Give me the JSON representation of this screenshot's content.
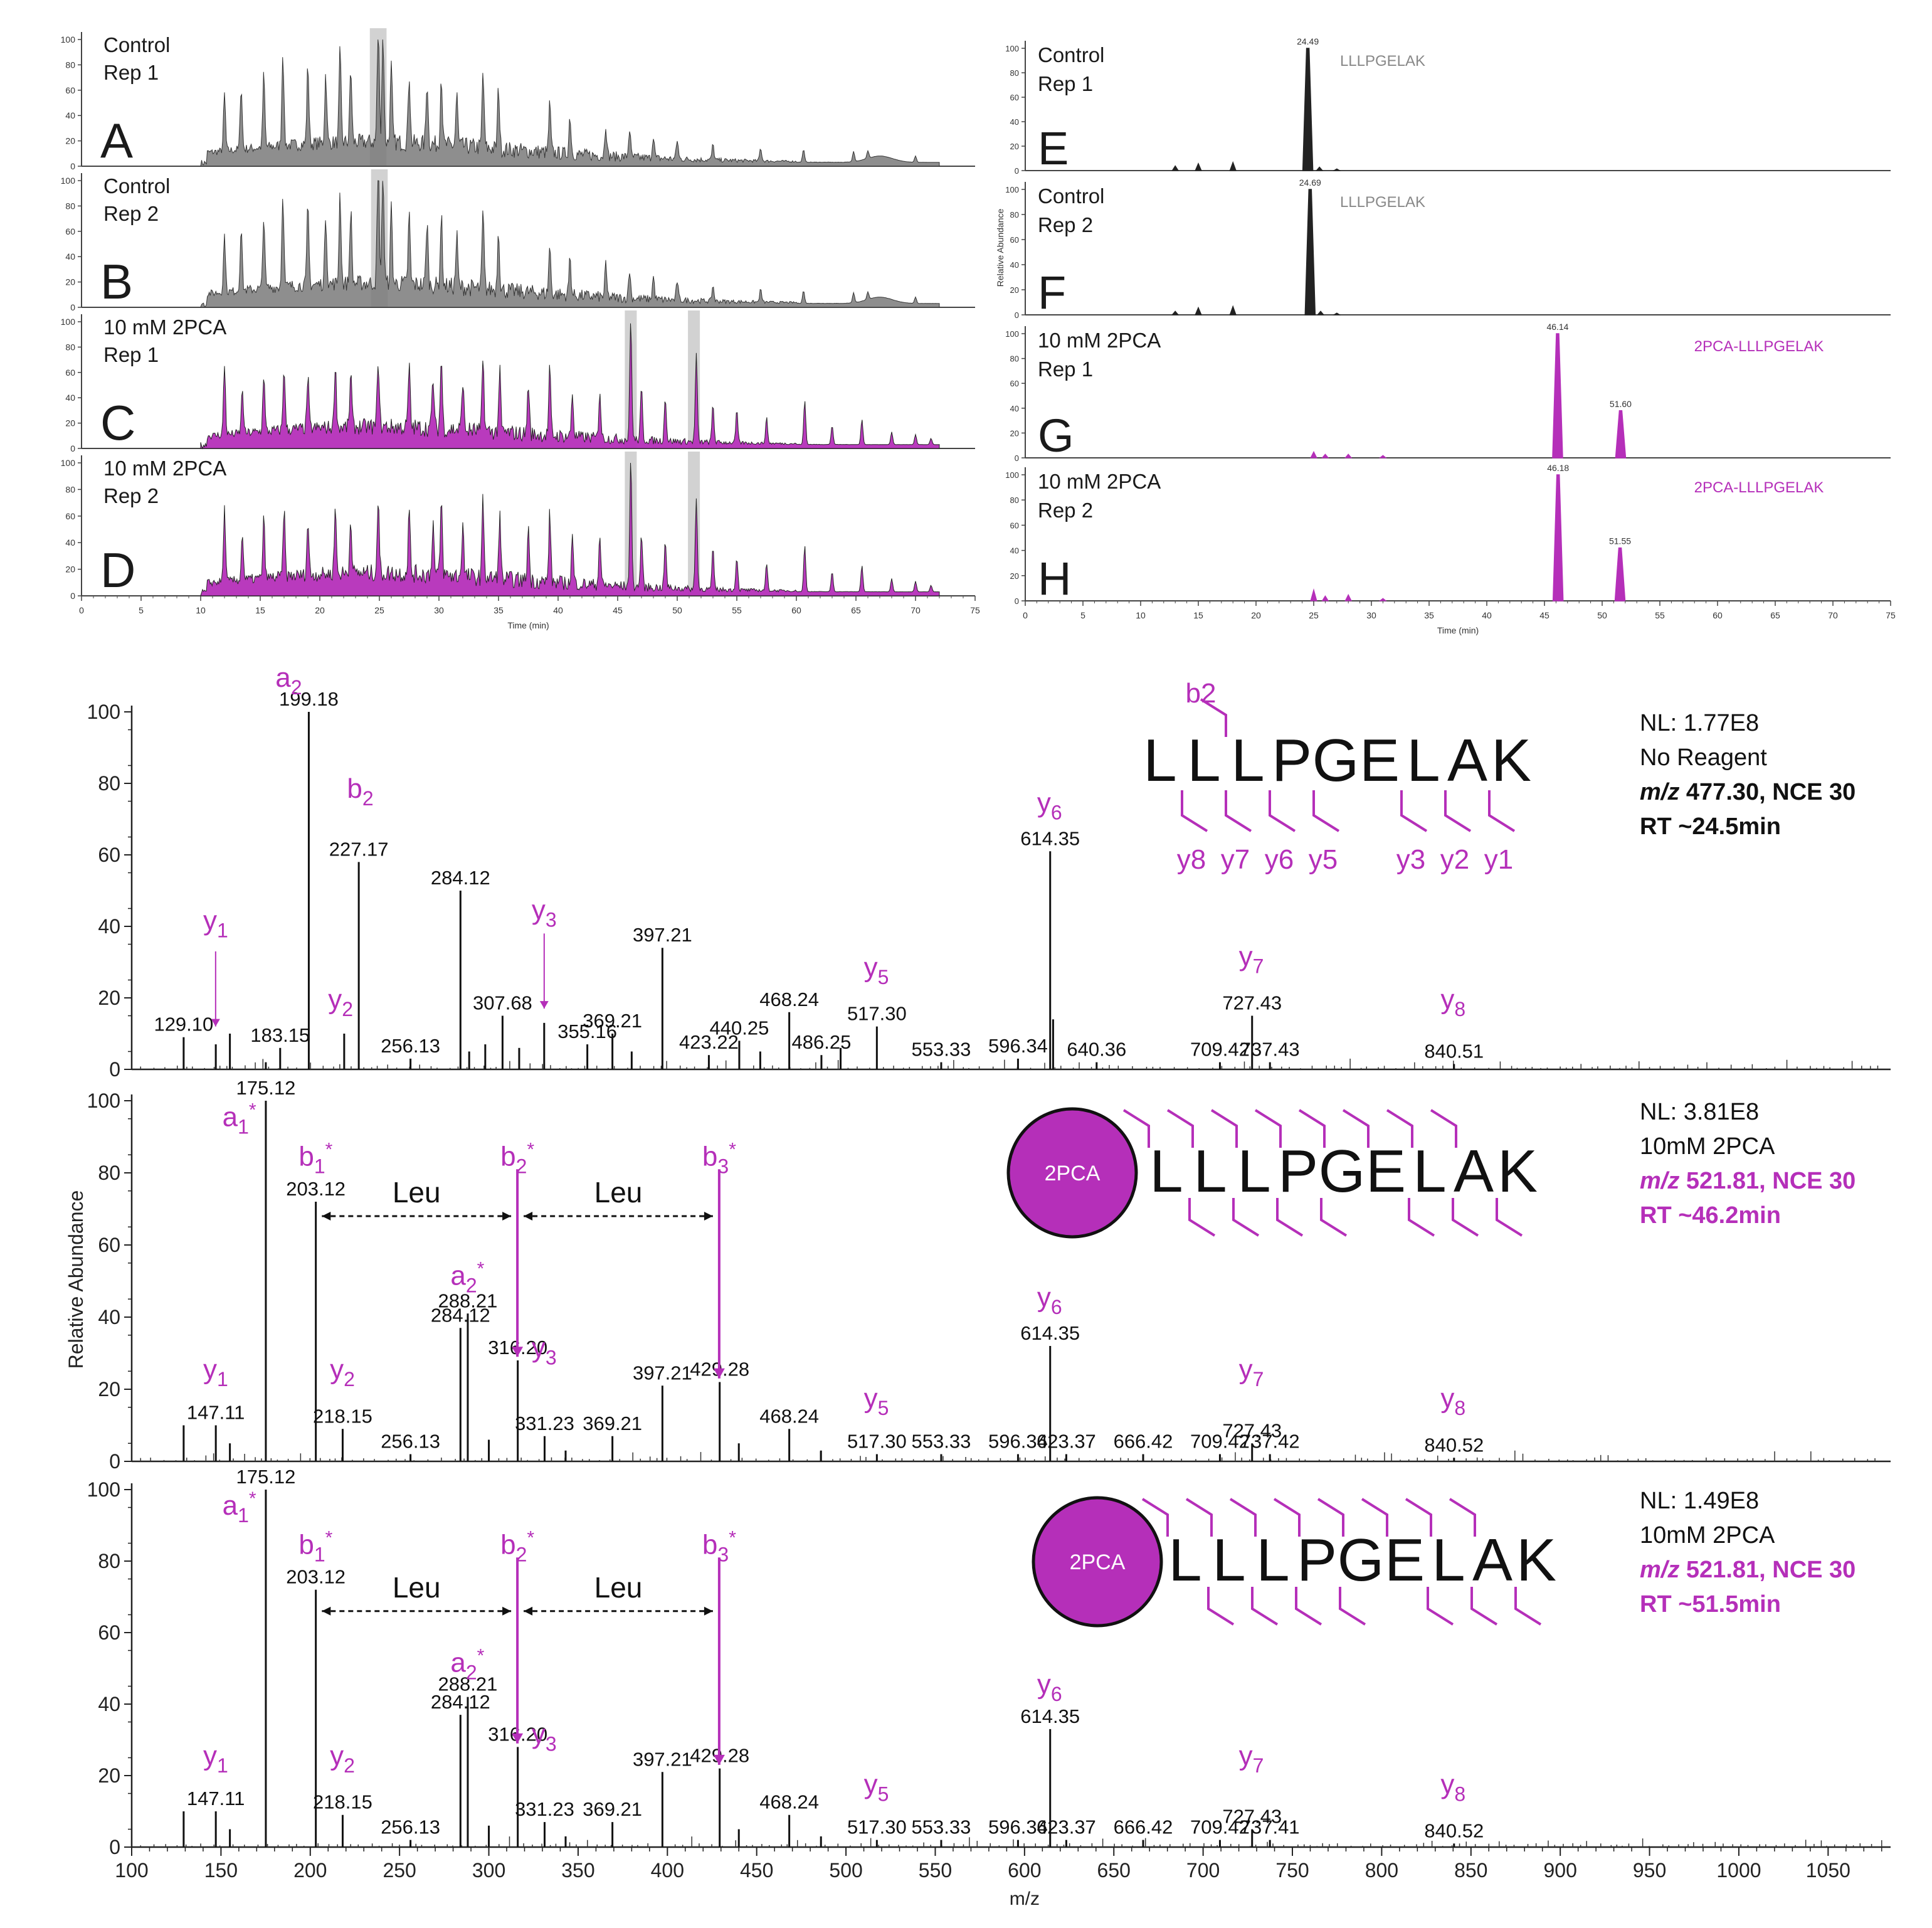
{
  "colors": {
    "magenta": "#b52fb9",
    "black": "#1a1a1a",
    "gray": "#808080",
    "highlight": "#d2d2d2",
    "green": "#7dd27d"
  },
  "chromatograms": [
    {
      "letter": "A",
      "label1": "Control",
      "label2": "Rep 1",
      "mode": "control",
      "hl": [
        [
          24.2,
          25.6
        ]
      ]
    },
    {
      "letter": "B",
      "label1": "Control",
      "label2": "Rep 2",
      "mode": "control",
      "hl": [
        [
          24.3,
          25.7
        ]
      ]
    },
    {
      "letter": "C",
      "label1": "10 mM 2PCA",
      "label2": "Rep 1",
      "mode": "2pca",
      "hl": [
        [
          45.6,
          46.6
        ],
        [
          50.9,
          51.9
        ]
      ]
    },
    {
      "letter": "D",
      "label1": "10 mM 2PCA",
      "label2": "Rep 2",
      "mode": "2pca",
      "hl": [
        [
          45.6,
          46.6
        ],
        [
          50.9,
          51.9
        ]
      ]
    }
  ],
  "xics": [
    {
      "letter": "E",
      "label1": "Control",
      "label2": "Rep 1",
      "tag": "LLLPGELAK",
      "tag_color": "gray",
      "peaks": [
        {
          "rt": 24.49,
          "h": 100,
          "label": "24.49"
        }
      ],
      "small": [
        [
          13,
          4
        ],
        [
          15,
          6
        ],
        [
          18,
          7
        ],
        [
          25.5,
          3
        ],
        [
          27,
          1.5
        ]
      ]
    },
    {
      "letter": "F",
      "label1": "Control",
      "label2": "Rep 2",
      "tag": "LLLPGELAK",
      "tag_color": "gray",
      "peaks": [
        {
          "rt": 24.69,
          "h": 100,
          "label": "24.69"
        }
      ],
      "small": [
        [
          13,
          3
        ],
        [
          15,
          6
        ],
        [
          18,
          7
        ],
        [
          25.6,
          3
        ],
        [
          27,
          1.5
        ]
      ]
    },
    {
      "letter": "G",
      "label1": "10 mM 2PCA",
      "label2": "Rep 1",
      "tag": "2PCA-LLLPGELAK",
      "tag_color": "magenta",
      "peaks": [
        {
          "rt": 46.14,
          "h": 100,
          "label": "46.14"
        },
        {
          "rt": 51.6,
          "h": 38,
          "label": "51.60"
        }
      ],
      "small": [
        [
          25,
          5
        ],
        [
          26,
          3
        ],
        [
          28,
          3
        ],
        [
          31,
          2
        ]
      ]
    },
    {
      "letter": "H",
      "label1": "10 mM 2PCA",
      "label2": "Rep 2",
      "tag": "2PCA-LLLPGELAK",
      "tag_color": "magenta",
      "peaks": [
        {
          "rt": 46.18,
          "h": 100,
          "label": "46.18"
        },
        {
          "rt": 51.55,
          "h": 42,
          "label": "51.55"
        }
      ],
      "small": [
        [
          25,
          9
        ],
        [
          26,
          4
        ],
        [
          28,
          5
        ],
        [
          31,
          2
        ]
      ]
    }
  ],
  "xics_ylabel": "Relative Abundance",
  "top_xlabel": "Time (min)",
  "top_yticks": [
    "0",
    "20",
    "40",
    "60",
    "80",
    "100"
  ],
  "top_xticks": [
    "0",
    "5",
    "10",
    "15",
    "20",
    "25",
    "30",
    "35",
    "40",
    "45",
    "50",
    "55",
    "60",
    "65",
    "70",
    "75"
  ],
  "chart_data": [
    {
      "type": "line",
      "title": "",
      "xlabel": "Time (min)",
      "ylabel": "",
      "xlim": [
        0,
        75
      ],
      "ylim": [
        0,
        100
      ],
      "panels": [
        "A",
        "B",
        "C",
        "D"
      ],
      "series": [
        {
          "name": "",
          "x": [
            12,
            15.3,
            17,
            19,
            21,
            22.6,
            24.9,
            27.5,
            30.2,
            33.7,
            39.3,
            46.1,
            51.6,
            60.7,
            65.5,
            70
          ],
          "values": [
            55,
            55,
            70,
            65,
            90,
            80,
            100,
            60,
            55,
            60,
            50,
            95,
            70,
            35,
            20,
            8
          ]
        }
      ]
    },
    {
      "type": "line",
      "xlabel": "Time (min)",
      "ylabel": "Relative Abundance",
      "xlim": [
        0,
        75
      ],
      "ylim": [
        0,
        100
      ],
      "panels": [
        "E",
        "F",
        "G",
        "H"
      ],
      "series": [
        {
          "name": "LLLPGELAK",
          "x": [
            24.49,
            24.69
          ],
          "values": [
            100,
            100
          ]
        },
        {
          "name": "2PCA-LLLPGELAK",
          "x": [
            46.14,
            51.6,
            46.18,
            51.55
          ],
          "values": [
            100,
            38,
            100,
            42
          ]
        }
      ]
    },
    {
      "type": "bar",
      "xlabel": "m/z",
      "ylabel": "Relative Abundance",
      "xlim": [
        100,
        1085
      ],
      "ylim": [
        0,
        100
      ],
      "panels": [
        "NL: 1.77E8",
        "NL: 3.81E8",
        "NL: 1.49E8"
      ]
    }
  ],
  "spectra": [
    {
      "nl": "NL: 1.77E8",
      "reagent": "No Reagent",
      "mz_prefix": "m/z",
      "mz_rest": " 477.30, NCE 30",
      "rt": "RT ~24.5min",
      "info_color": "black",
      "peaks": [
        [
          129.1,
          9,
          "129.10"
        ],
        [
          147.1,
          7,
          ""
        ],
        [
          155,
          10,
          ""
        ],
        [
          175.1,
          2,
          ""
        ],
        [
          183.15,
          6,
          "183.15"
        ],
        [
          199.18,
          100,
          "199.18"
        ],
        [
          219,
          10,
          ""
        ],
        [
          227.17,
          58,
          "227.17"
        ],
        [
          256.13,
          3,
          "256.13"
        ],
        [
          284.12,
          50,
          "284.12"
        ],
        [
          289,
          5,
          ""
        ],
        [
          298,
          7,
          ""
        ],
        [
          307.68,
          15,
          "307.68"
        ],
        [
          317,
          6,
          ""
        ],
        [
          331,
          13,
          ""
        ],
        [
          355.16,
          7,
          "355.16"
        ],
        [
          369.21,
          10,
          "369.21"
        ],
        [
          380,
          5,
          ""
        ],
        [
          397.21,
          34,
          "397.21"
        ],
        [
          423.22,
          4,
          "423.22"
        ],
        [
          440.25,
          8,
          "440.25"
        ],
        [
          452,
          5,
          ""
        ],
        [
          468.24,
          16,
          "468.24"
        ],
        [
          486.25,
          4,
          "486.25"
        ],
        [
          497,
          6,
          ""
        ],
        [
          517.3,
          12,
          "517.30"
        ],
        [
          553.33,
          2,
          "553.33"
        ],
        [
          596.34,
          3,
          "596.34"
        ],
        [
          614.35,
          61,
          "614.35"
        ],
        [
          616,
          14,
          ""
        ],
        [
          640.36,
          2,
          "640.36"
        ],
        [
          709.42,
          2,
          "709.42"
        ],
        [
          727.43,
          15,
          "727.43"
        ],
        [
          737.43,
          2,
          "737.43"
        ],
        [
          840.51,
          1.5,
          "840.51"
        ]
      ],
      "ions": [
        {
          "t": "a",
          "s": "2",
          "sup": "",
          "mz": 199.18,
          "y": 107,
          "dx": -32
        },
        {
          "t": "b",
          "s": "2",
          "sup": "",
          "mz": 228,
          "y": 76,
          "dx": 0
        },
        {
          "t": "y",
          "s": "1",
          "sup": "",
          "mz": 147,
          "y": 39,
          "dx": 0
        },
        {
          "t": "y",
          "s": "2",
          "sup": "",
          "mz": 217,
          "y": 17,
          "dx": 0
        },
        {
          "t": "y",
          "s": "3",
          "sup": "",
          "mz": 331,
          "y": 42,
          "dx": 0
        },
        {
          "t": "y",
          "s": "5",
          "sup": "",
          "mz": 517,
          "y": 26,
          "dx": 0
        },
        {
          "t": "y",
          "s": "6",
          "sup": "",
          "mz": 614,
          "y": 72,
          "dx": 0
        },
        {
          "t": "y",
          "s": "7",
          "sup": "",
          "mz": 727,
          "y": 29,
          "dx": 0
        },
        {
          "t": "y",
          "s": "8",
          "sup": "",
          "mz": 840,
          "y": 17,
          "dx": 0
        }
      ],
      "seq_mode": "plain",
      "seq": [
        "L",
        "L",
        "L",
        "P",
        "G",
        "E",
        "L",
        "A",
        "K"
      ],
      "top_frag": "b2",
      "bottom_frags": [
        "y8",
        "y7",
        "y6",
        "y5",
        "y3",
        "y2",
        "y1"
      ]
    },
    {
      "nl": "NL: 3.81E8",
      "reagent": "10mM 2PCA",
      "mz_prefix": "m/z",
      "mz_rest": " 521.81, NCE 30",
      "rt": "RT ~46.2min",
      "info_color": "magenta",
      "peaks": [
        [
          129.1,
          10,
          ""
        ],
        [
          147.11,
          10,
          "147.11"
        ],
        [
          155,
          5,
          ""
        ],
        [
          175.12,
          100,
          "175.12"
        ],
        [
          203.12,
          72,
          "203.12"
        ],
        [
          218.15,
          9,
          "218.15"
        ],
        [
          256.13,
          2,
          "256.13"
        ],
        [
          284.12,
          37,
          "284.12"
        ],
        [
          288.21,
          41,
          "288.21"
        ],
        [
          300,
          6,
          ""
        ],
        [
          316.2,
          28,
          "316.20"
        ],
        [
          331.23,
          7,
          "331.23"
        ],
        [
          343,
          3,
          ""
        ],
        [
          369.21,
          7,
          "369.21"
        ],
        [
          397.21,
          21,
          "397.21"
        ],
        [
          429.28,
          22,
          "429.28"
        ],
        [
          440,
          5,
          ""
        ],
        [
          468.24,
          9,
          "468.24"
        ],
        [
          486,
          3,
          ""
        ],
        [
          517.3,
          2,
          "517.30"
        ],
        [
          553.33,
          2,
          "553.33"
        ],
        [
          596.34,
          2,
          "596.34"
        ],
        [
          614.35,
          32,
          "614.35"
        ],
        [
          623.37,
          2,
          "623.37"
        ],
        [
          666.42,
          2,
          "666.42"
        ],
        [
          709.42,
          2,
          "709.42"
        ],
        [
          727.43,
          5,
          "727.43"
        ],
        [
          737.42,
          2,
          "737.42"
        ],
        [
          840.52,
          1,
          "840.52"
        ]
      ],
      "ions": [
        {
          "t": "a",
          "s": "1",
          "sup": "*",
          "mz": 175,
          "y": 93,
          "dx": -42
        },
        {
          "t": "b",
          "s": "1",
          "sup": "*",
          "mz": 203,
          "y": 82,
          "dx": 0
        },
        {
          "t": "b",
          "s": "2",
          "sup": "*",
          "mz": 316,
          "y": 82,
          "dx": 0
        },
        {
          "t": "b",
          "s": "3",
          "sup": "*",
          "mz": 429,
          "y": 82,
          "dx": 0
        },
        {
          "t": "a",
          "s": "2",
          "sup": "*",
          "mz": 288,
          "y": 49,
          "dx": 0
        },
        {
          "t": "y",
          "s": "1",
          "sup": "",
          "mz": 147,
          "y": 23,
          "dx": 0
        },
        {
          "t": "y",
          "s": "2",
          "sup": "",
          "mz": 218,
          "y": 23,
          "dx": 0
        },
        {
          "t": "y",
          "s": "3",
          "sup": "",
          "mz": 331,
          "y": 29,
          "dx": 0
        },
        {
          "t": "y",
          "s": "5",
          "sup": "",
          "mz": 517,
          "y": 15,
          "dx": 0
        },
        {
          "t": "y",
          "s": "6",
          "sup": "",
          "mz": 614,
          "y": 43,
          "dx": 0
        },
        {
          "t": "y",
          "s": "7",
          "sup": "",
          "mz": 727,
          "y": 23,
          "dx": 0
        },
        {
          "t": "y",
          "s": "8",
          "sup": "",
          "mz": 840,
          "y": 15,
          "dx": 0
        }
      ],
      "leu": {
        "label": "Leu",
        "a": [
          203,
          316
        ],
        "b": [
          316,
          429
        ],
        "y": 68
      },
      "seq_mode": "2pca",
      "badge": "2PCA",
      "seq": [
        "L",
        "L",
        "L",
        "P",
        "G",
        "E",
        "L",
        "A",
        "K"
      ]
    },
    {
      "nl": "NL: 1.49E8",
      "reagent": "10mM 2PCA",
      "mz_prefix": "m/z",
      "mz_rest": " 521.81, NCE 30",
      "rt": "RT ~51.5min",
      "info_color": "magenta",
      "peaks": [
        [
          129.1,
          10,
          ""
        ],
        [
          147.11,
          10,
          "147.11"
        ],
        [
          155,
          5,
          ""
        ],
        [
          175.12,
          100,
          "175.12"
        ],
        [
          203.12,
          72,
          "203.12"
        ],
        [
          218.15,
          9,
          "218.15"
        ],
        [
          256.13,
          2,
          "256.13"
        ],
        [
          284.12,
          37,
          "284.12"
        ],
        [
          288.21,
          42,
          "288.21"
        ],
        [
          300,
          6,
          ""
        ],
        [
          316.2,
          28,
          "316.20"
        ],
        [
          331.23,
          7,
          "331.23"
        ],
        [
          343,
          3,
          ""
        ],
        [
          369.21,
          7,
          "369.21"
        ],
        [
          397.21,
          21,
          "397.21"
        ],
        [
          429.28,
          22,
          "429.28"
        ],
        [
          440,
          5,
          ""
        ],
        [
          468.24,
          9,
          "468.24"
        ],
        [
          486,
          3,
          ""
        ],
        [
          517.3,
          2,
          "517.30"
        ],
        [
          553.33,
          2,
          "553.33"
        ],
        [
          596.34,
          2,
          "596.34"
        ],
        [
          614.35,
          33,
          "614.35"
        ],
        [
          623.37,
          2,
          "623.37"
        ],
        [
          666.42,
          2,
          "666.42"
        ],
        [
          709.42,
          2,
          "709.42"
        ],
        [
          727.43,
          5,
          "727.43"
        ],
        [
          737.41,
          2,
          "737.41"
        ],
        [
          840.52,
          1,
          "840.52"
        ]
      ],
      "ions": [
        {
          "t": "a",
          "s": "1",
          "sup": "*",
          "mz": 175,
          "y": 93,
          "dx": -42
        },
        {
          "t": "b",
          "s": "1",
          "sup": "*",
          "mz": 203,
          "y": 82,
          "dx": 0
        },
        {
          "t": "b",
          "s": "2",
          "sup": "*",
          "mz": 316,
          "y": 82,
          "dx": 0
        },
        {
          "t": "b",
          "s": "3",
          "sup": "*",
          "mz": 429,
          "y": 82,
          "dx": 0
        },
        {
          "t": "a",
          "s": "2",
          "sup": "*",
          "mz": 288,
          "y": 49,
          "dx": 0
        },
        {
          "t": "y",
          "s": "1",
          "sup": "",
          "mz": 147,
          "y": 23,
          "dx": 0
        },
        {
          "t": "y",
          "s": "2",
          "sup": "",
          "mz": 218,
          "y": 23,
          "dx": 0
        },
        {
          "t": "y",
          "s": "3",
          "sup": "",
          "mz": 331,
          "y": 29,
          "dx": 0
        },
        {
          "t": "y",
          "s": "5",
          "sup": "",
          "mz": 517,
          "y": 15,
          "dx": 0
        },
        {
          "t": "y",
          "s": "6",
          "sup": "",
          "mz": 614,
          "y": 43,
          "dx": 0
        },
        {
          "t": "y",
          "s": "7",
          "sup": "",
          "mz": 727,
          "y": 23,
          "dx": 0
        },
        {
          "t": "y",
          "s": "8",
          "sup": "",
          "mz": 840,
          "y": 15,
          "dx": 0
        }
      ],
      "leu": {
        "label": "Leu",
        "a": [
          203,
          316
        ],
        "b": [
          316,
          429
        ],
        "y": 66
      },
      "seq_mode": "2pca",
      "badge": "2PCA",
      "seq": [
        "L",
        "L",
        "L",
        "P",
        "G",
        "E",
        "L",
        "A",
        "K"
      ]
    }
  ],
  "spectra_xlabel": "m/z",
  "spectra_ylabel": "Relative Abundance",
  "spectra_yticks": [
    "0",
    "20",
    "40",
    "60",
    "80",
    "100"
  ],
  "spectra_xticks": [
    "100",
    "150",
    "200",
    "250",
    "300",
    "350",
    "400",
    "450",
    "500",
    "550",
    "600",
    "650",
    "700",
    "750",
    "800",
    "850",
    "900",
    "950",
    "1000",
    "1050"
  ]
}
